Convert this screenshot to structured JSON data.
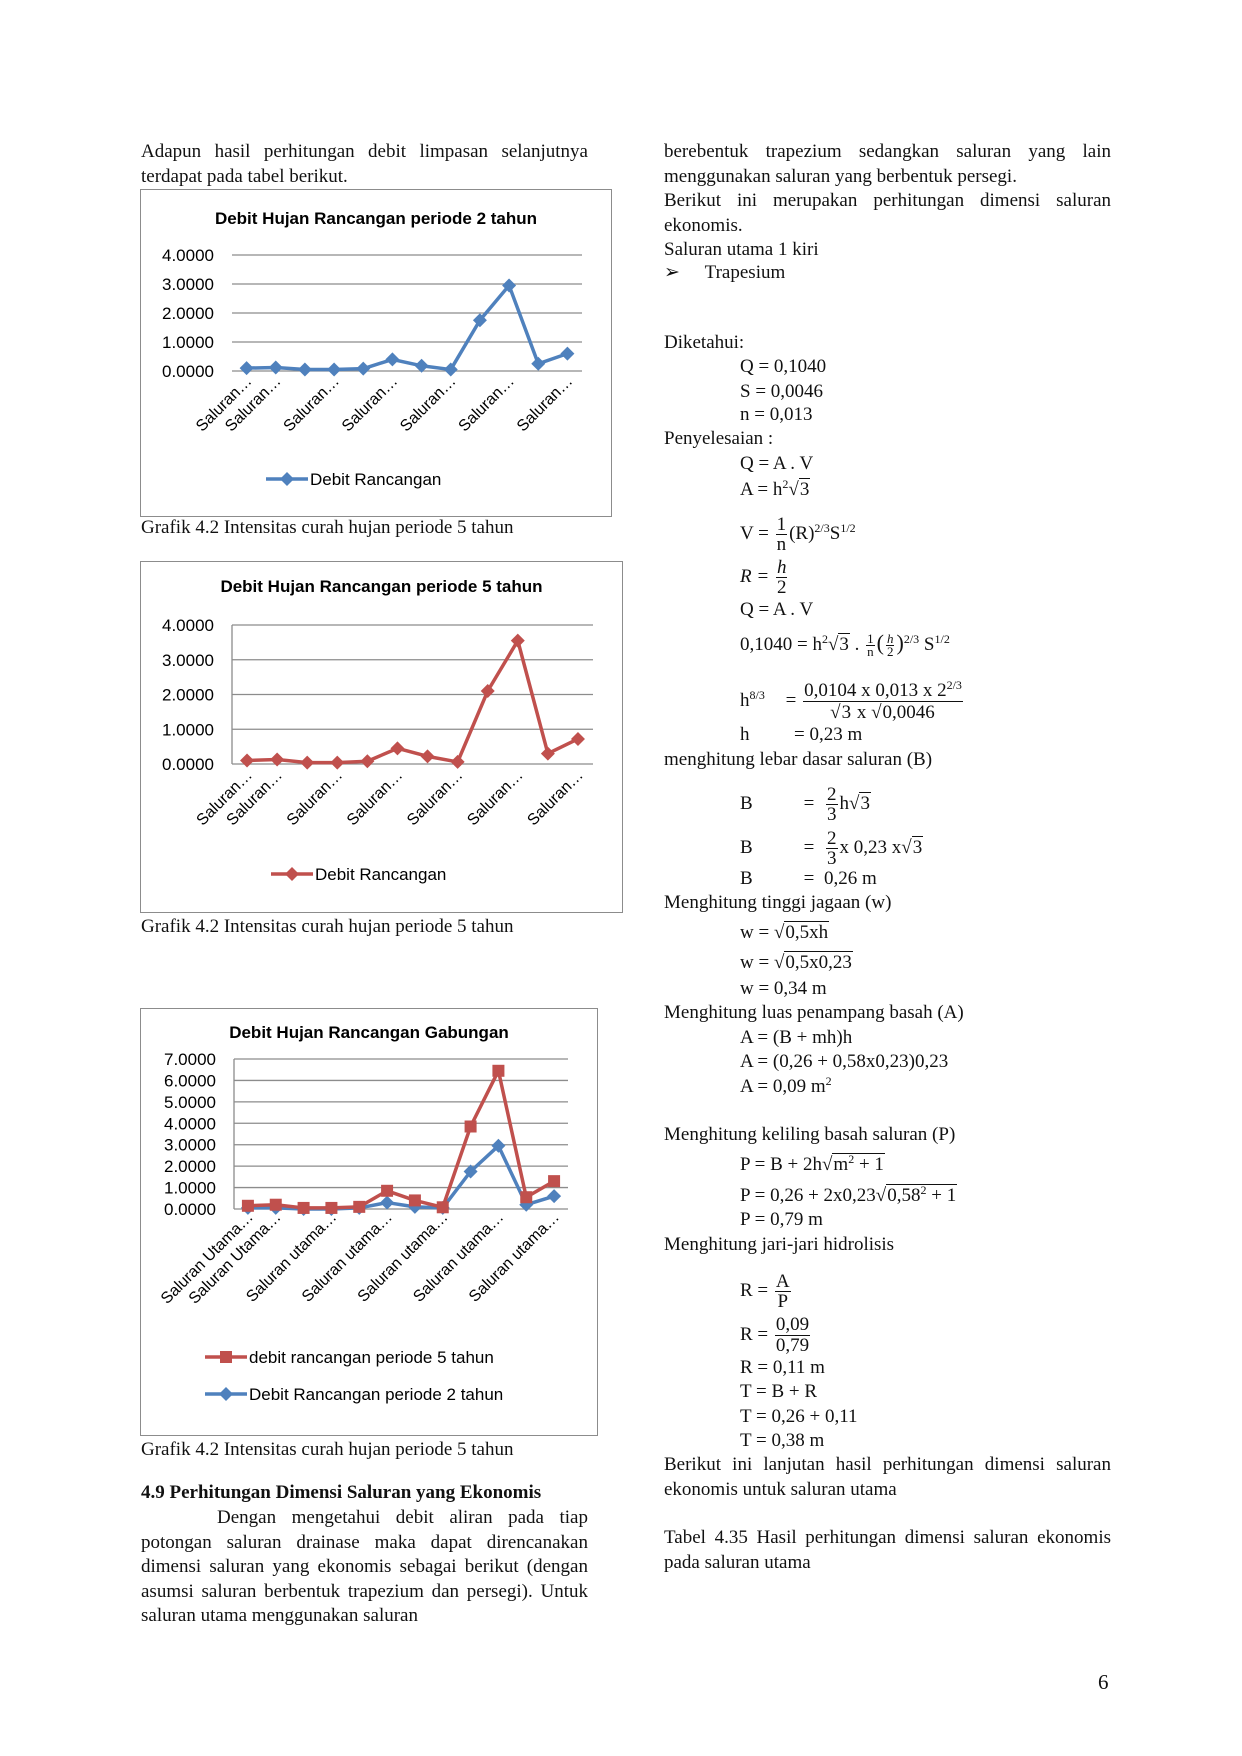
{
  "left": {
    "intro": "Adapun hasil perhitungan debit limpasan selanjutnya terdapat pada tabel berikut.",
    "caption1": "Grafik 4.2 Intensitas curah hujan periode 5 tahun",
    "caption2": "Grafik 4.2 Intensitas curah hujan periode 5 tahun",
    "caption3": "Grafik 4.2 Intensitas curah hujan periode 5 tahun",
    "heading": "4.9 Perhitungan Dimensi Saluran yang Ekonomis",
    "paragraph": "Dengan mengetahui debit aliran pada tiap potongan saluran drainase maka dapat direncanakan dimensi saluran yang ekonomis sebagai berikut (dengan asumsi saluran berbentuk trapezium dan persegi). Untuk saluran utama menggunakan saluran"
  },
  "right": {
    "p1": "berebentuk trapezium sedangkan saluran yang lain menggunakan saluran yang berbentuk persegi.",
    "p2": "Berikut ini merupakan perhitungan dimensi saluran ekonomis.",
    "sub": "Saluran utama 1 kiri",
    "bullet": "➢",
    "shape": "Trapesium",
    "diketahui": "Diketahui:",
    "Q": "Q = 0,1040",
    "S": "S = 0,0046",
    "n": "n = 0,013",
    "penyelesaian": "Penyelesaian :",
    "f1": "Q = A . V",
    "f2a": "A = h",
    "f2b": "2",
    "f2c": "3",
    "f3a": "V = ",
    "f3num": "1",
    "f3den": "n",
    "f3b": "(R)",
    "f3c": "2/3",
    "f3d": "S",
    "f3e": "1/2",
    "f4a": "R = ",
    "f4num": "h",
    "f4den": "2",
    "f5": "Q = A . V",
    "f6a": "0,1040 = h",
    "f6b": "2",
    "f6c": "3",
    "f6d": " . ",
    "f6num": "1",
    "f6den": "n",
    "f6hn": "h",
    "f6hd": "2",
    "f6e": "2/3",
    "f6f": " S",
    "f6g": "1/2",
    "f7a": "h",
    "f7b": "8/3",
    "f7eq": "=",
    "f7num": "0,0104 x 0,013 x 2",
    "f7numsup": "2/3",
    "f7den1": "3",
    "f7den2": " x ",
    "f7den3": "0,0046",
    "f8a": "h",
    "f8b": "= 0,23 m",
    "lebar": "menghitung lebar dasar saluran (B)",
    "b1a": "B",
    "b1eq": "=",
    "b1num": "2",
    "b1den": "3",
    "b1b": "h",
    "b1c": "3",
    "b2a": "B",
    "b2eq": "=",
    "b2num": "2",
    "b2den": "3",
    "b2b": "x 0,23 x",
    "b2c": "3",
    "b3a": "B",
    "b3eq": "=",
    "b3b": "0,26 m",
    "jagaan": "Menghitung tinggi jagaan (w)",
    "w1a": "w = ",
    "w1b": "0,5xh",
    "w2a": "w = ",
    "w2b": "0,5x0,23",
    "w3": "w = 0,34 m",
    "luas": "Menghitung luas penampang basah (A)",
    "a1": "A = (B + mh)h",
    "a2": "A = (0,26 + 0,58x0,23)0,23",
    "a3a": "A = 0,09 m",
    "a3b": "2",
    "keliling": "Menghitung keliling basah saluran (P)",
    "p1a": "P = B + 2h",
    "p1b": "m",
    "p1c": "2",
    "p1d": " + 1",
    "p2a": "P = 0,26 + 2x0,23",
    "p2b": "0,58",
    "p2c": "2",
    "p2d": " + 1",
    "p3": "P = 0,79 m",
    "jari": "Menghitung jari-jari hidrolisis",
    "r1a": "R = ",
    "r1num": "A",
    "r1den": "P",
    "r2a": "R = ",
    "r2num": "0,09",
    "r2den": "0,79",
    "r3": "R = 0,11 m",
    "t1": "T = B + R",
    "t2": "T = 0,26 + 0,11",
    "t3": "T = 0,38 m",
    "lanjutan": "Berikut ini lanjutan hasil perhitungan dimensi saluran ekonomis untuk saluran utama",
    "tabel": "Tabel 4.35 Hasil perhitungan dimensi saluran ekonomis pada saluran utama"
  },
  "page_number": "6",
  "chart_data": [
    {
      "type": "line",
      "title": "Debit Hujan Rancangan periode 2 tahun",
      "x_tick_labels": [
        "Saluran…",
        "Saluran…",
        "Saluran…",
        "Saluran…",
        "Saluran…",
        "Saluran…",
        "Saluran…"
      ],
      "y_ticks": [
        "4.0000",
        "3.0000",
        "2.0000",
        "1.0000",
        "0.0000"
      ],
      "ylim": [
        0,
        4
      ],
      "grid": true,
      "legend": "bottom",
      "series": [
        {
          "name": "Debit Rancangan",
          "color": "#4f81bd",
          "marker": "diamond",
          "values": [
            0.1,
            0.12,
            0.05,
            0.05,
            0.08,
            0.4,
            0.18,
            0.05,
            1.75,
            2.95,
            0.25,
            0.6
          ]
        }
      ]
    },
    {
      "type": "line",
      "title": "Debit Hujan Rancangan periode 5 tahun",
      "x_tick_labels": [
        "Saluran…",
        "Saluran…",
        "Saluran…",
        "Saluran…",
        "Saluran…",
        "Saluran…",
        "Saluran…"
      ],
      "y_ticks": [
        "4.0000",
        "3.0000",
        "2.0000",
        "1.0000",
        "0.0000"
      ],
      "ylim": [
        0,
        4
      ],
      "grid": true,
      "legend": "bottom",
      "series": [
        {
          "name": "Debit Rancangan",
          "color": "#c0504d",
          "marker": "diamond",
          "values": [
            0.1,
            0.13,
            0.04,
            0.04,
            0.08,
            0.45,
            0.22,
            0.06,
            2.1,
            3.55,
            0.3,
            0.72
          ]
        }
      ]
    },
    {
      "type": "line",
      "title": "Debit Hujan Rancangan Gabungan",
      "x_tick_labels": [
        "Saluran Utama…",
        "Saluran Utama…",
        "Saluran utama…",
        "Saluran utama…",
        "Saluran utama…",
        "Saluran utama…",
        "Saluran utama…"
      ],
      "y_ticks": [
        "7.0000",
        "6.0000",
        "5.0000",
        "4.0000",
        "3.0000",
        "2.0000",
        "1.0000",
        "0.0000"
      ],
      "ylim": [
        0,
        7
      ],
      "grid": true,
      "legend": "bottom",
      "series": [
        {
          "name": "Debit Rancangan periode 2 tahun",
          "color": "#4f81bd",
          "marker": "diamond",
          "values": [
            0.05,
            0.05,
            0.0,
            0.0,
            0.05,
            0.3,
            0.1,
            0.05,
            1.75,
            2.95,
            0.2,
            0.6
          ]
        },
        {
          "name": "debit rancangan periode 5 tahun",
          "color": "#c0504d",
          "marker": "square",
          "values": [
            0.15,
            0.2,
            0.05,
            0.05,
            0.1,
            0.85,
            0.4,
            0.08,
            3.85,
            6.45,
            0.55,
            1.3
          ]
        }
      ]
    }
  ]
}
